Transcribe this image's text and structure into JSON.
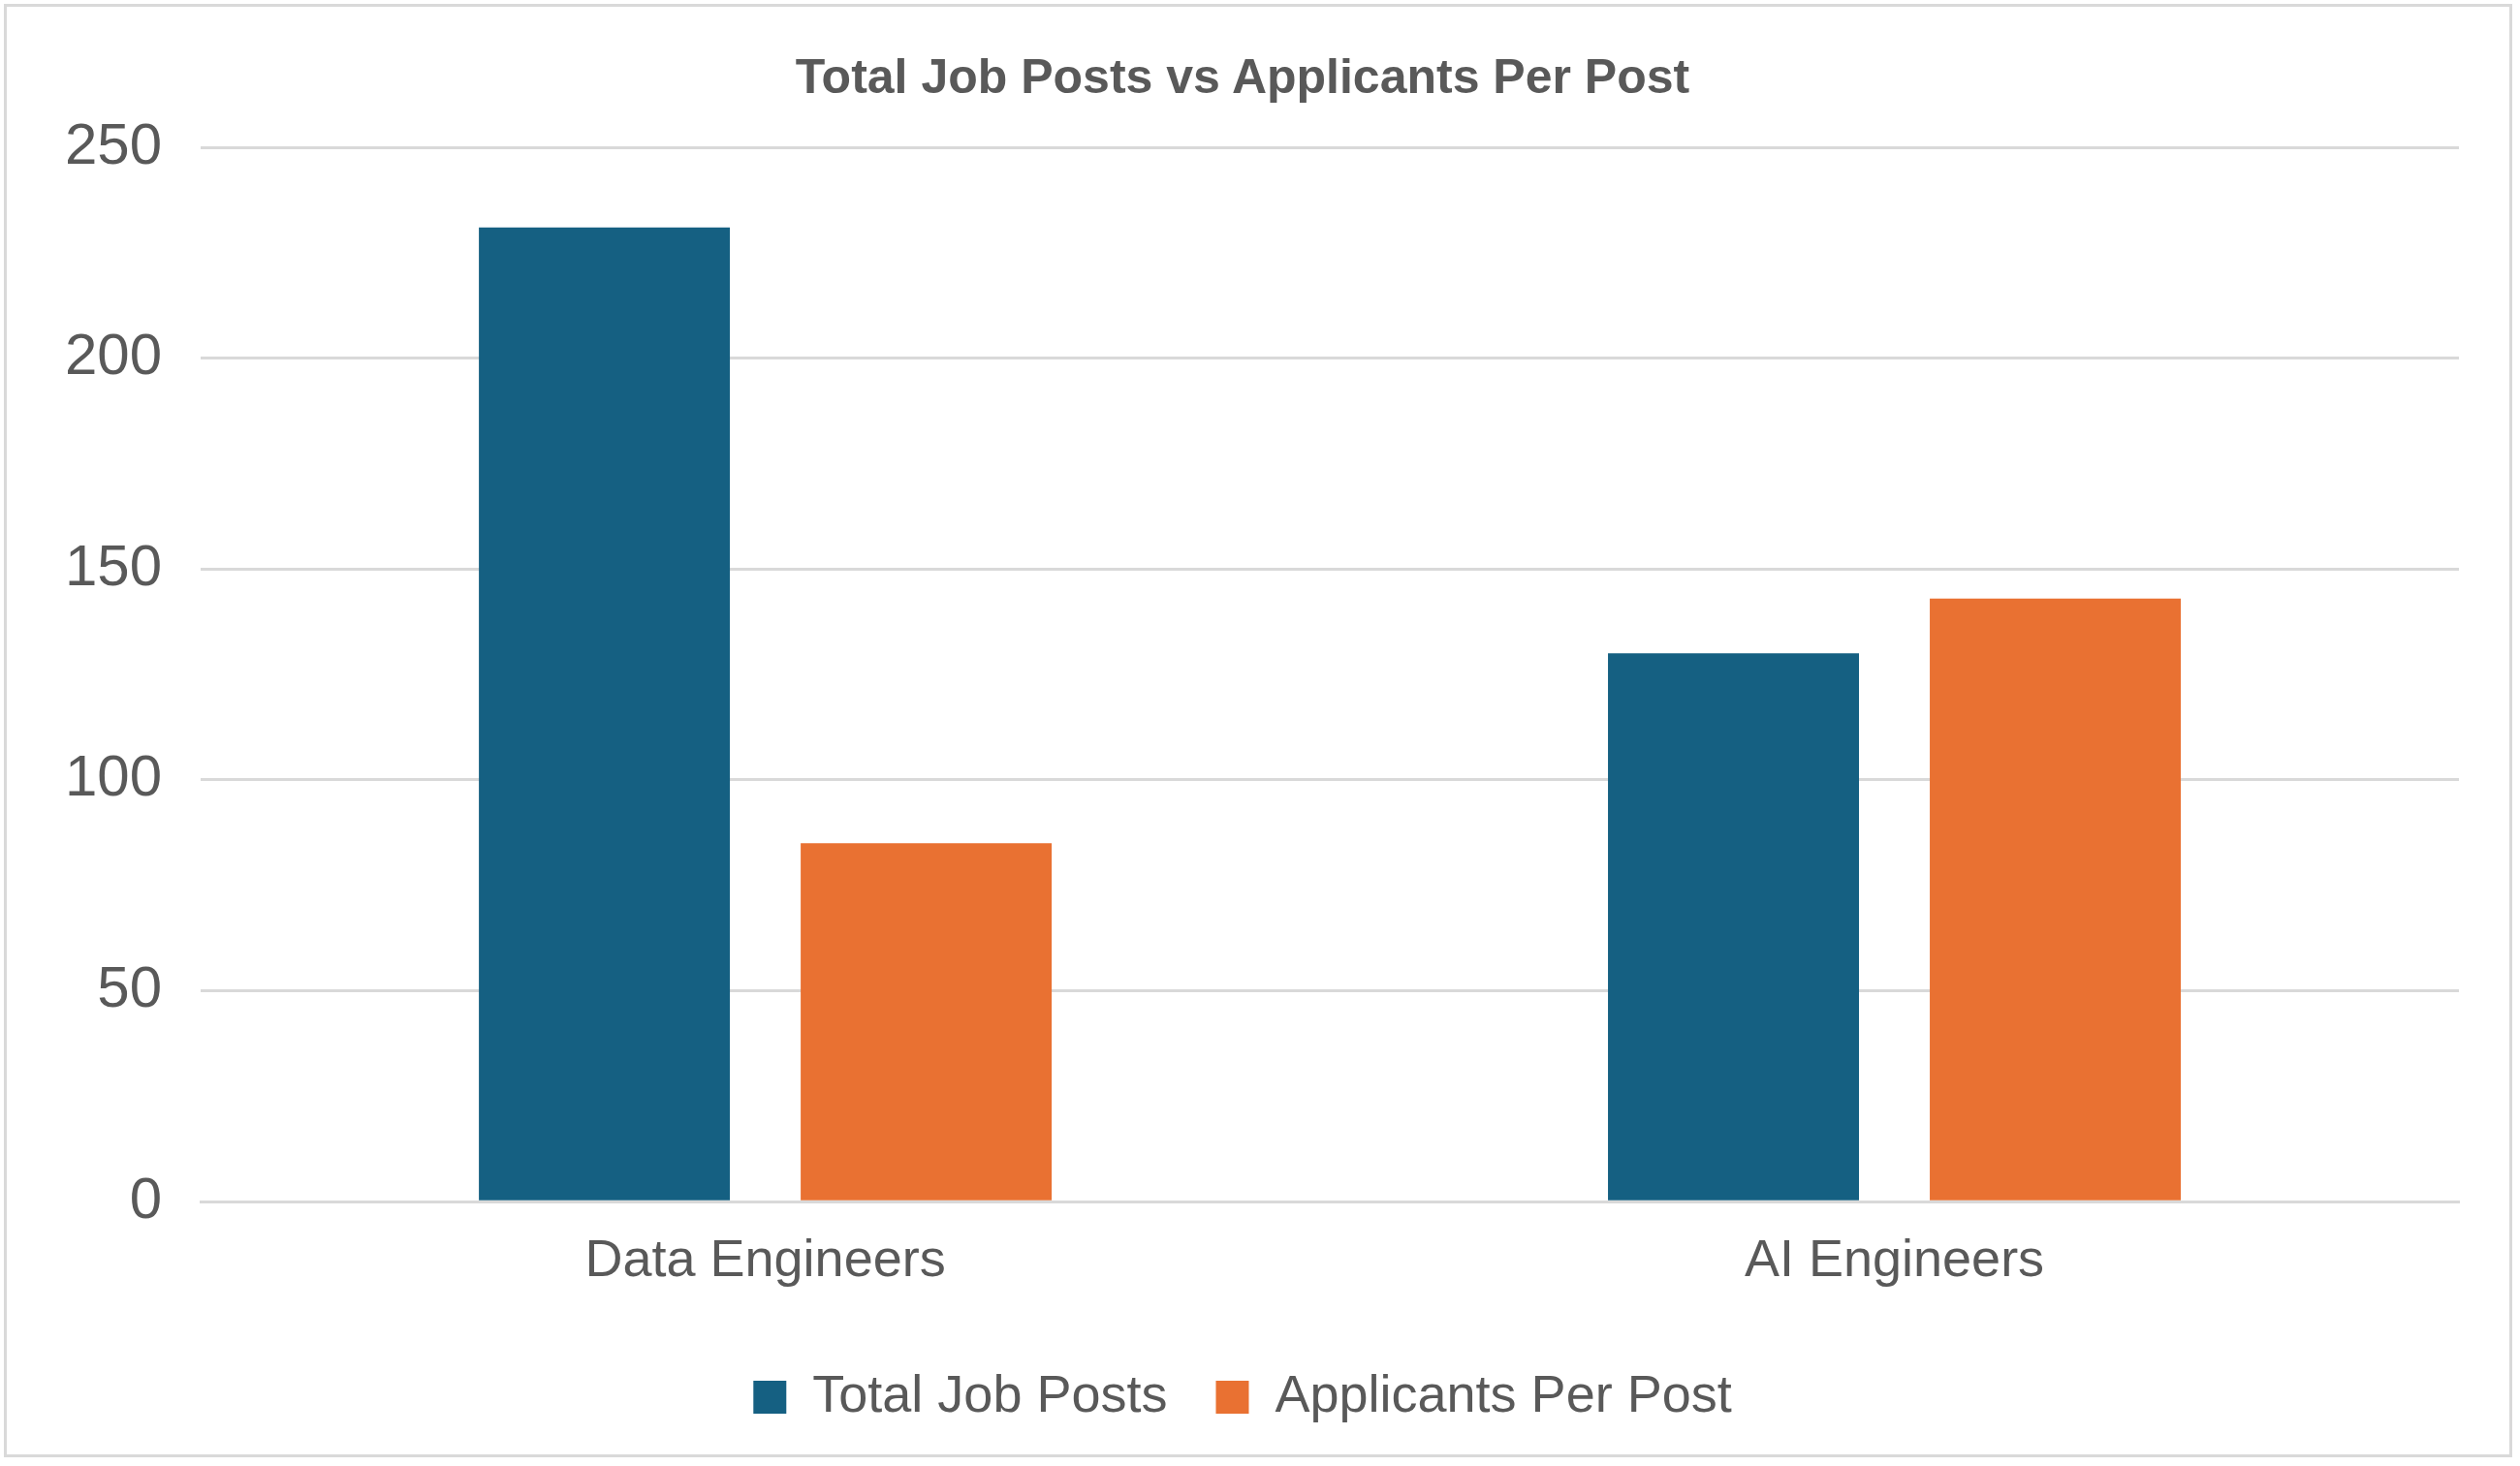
{
  "chart_data": {
    "type": "bar",
    "title": "Total Job Posts vs Applicants Per Post",
    "categories": [
      "Data Engineers",
      "AI Engineers"
    ],
    "series": [
      {
        "name": "Total Job Posts",
        "color": "#156082",
        "values": [
          231,
          130
        ]
      },
      {
        "name": "Applicants Per Post",
        "color": "#e97132",
        "values": [
          85,
          143
        ]
      }
    ],
    "ylim": [
      0,
      250
    ],
    "yticks": [
      0,
      50,
      100,
      150,
      200,
      250
    ],
    "grid": "y",
    "legend": "bottom"
  }
}
